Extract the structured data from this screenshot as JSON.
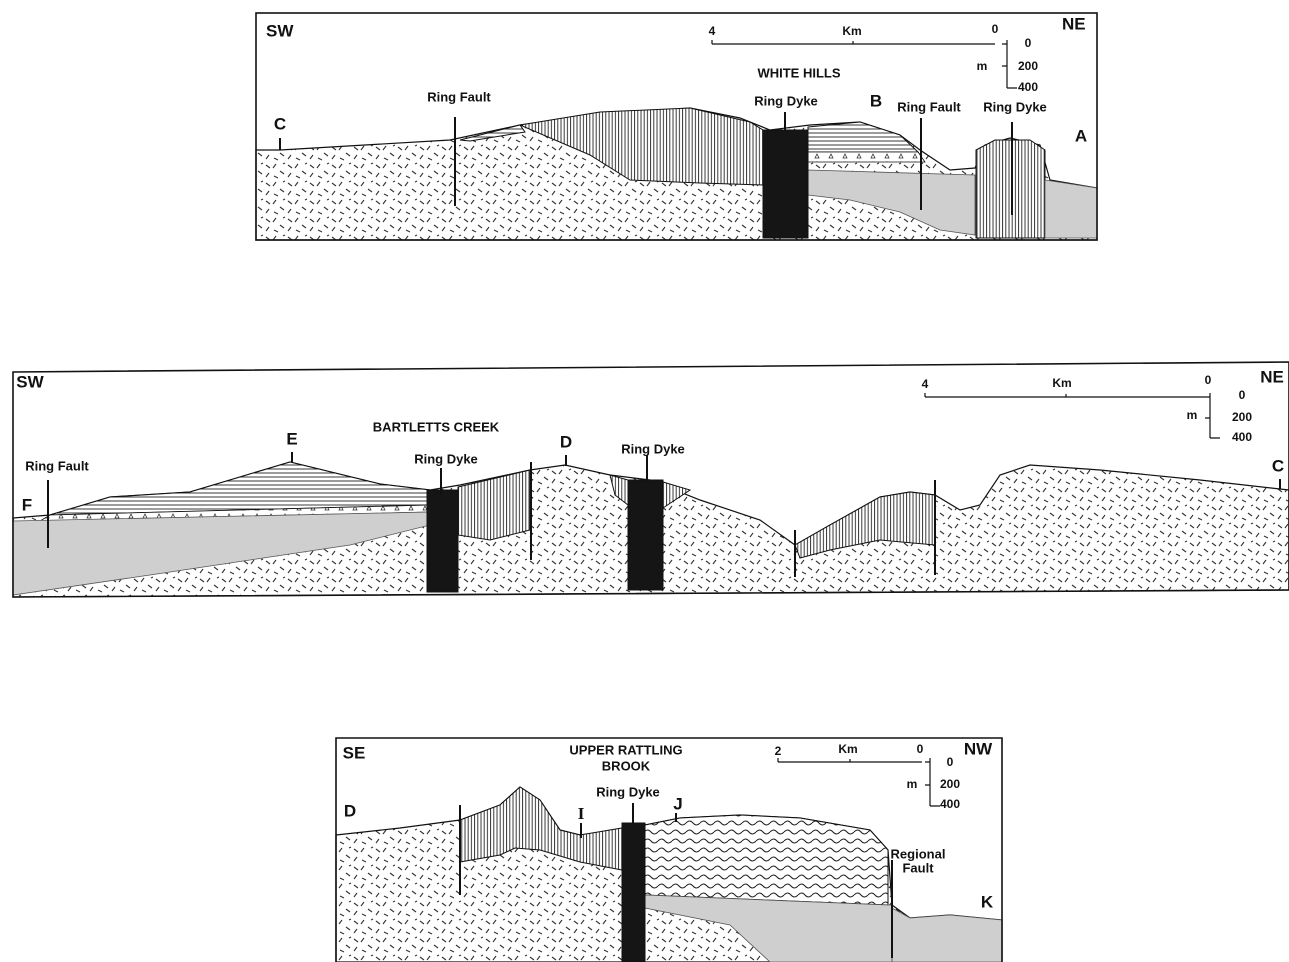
{
  "sections": [
    {
      "left": "SW",
      "right": "NE",
      "title": "WHITE HILLS",
      "points": [
        "C",
        "B",
        "A"
      ],
      "faults": [
        "Ring Fault",
        "Ring Fault"
      ],
      "dykes": [
        "Ring Dyke",
        "Ring Dyke"
      ],
      "scale": {
        "km_label": "Km",
        "km_left": "4",
        "km_right": "0",
        "m_label": "m",
        "m_ticks": [
          "0",
          "200",
          "400"
        ]
      }
    },
    {
      "left": "SW",
      "right": "NE",
      "title": "BARTLETTS CREEK",
      "points": [
        "F",
        "E",
        "D",
        "C"
      ],
      "faults": [
        "Ring Fault"
      ],
      "dykes": [
        "Ring Dyke",
        "Ring Dyke"
      ],
      "scale": {
        "km_label": "Km",
        "km_left": "4",
        "km_right": "0",
        "m_label": "m",
        "m_ticks": [
          "0",
          "200",
          "400"
        ]
      }
    },
    {
      "left": "SE",
      "right": "NW",
      "title_lines": [
        "UPPER RATTLING",
        "BROOK"
      ],
      "points": [
        "D",
        "I",
        "J",
        "K"
      ],
      "regional_fault": [
        "Regional",
        "Fault"
      ],
      "dykes": [
        "Ring Dyke"
      ],
      "scale": {
        "km_label": "Km",
        "km_left": "2",
        "km_right": "0",
        "m_label": "m",
        "m_ticks": [
          "0",
          "200",
          "400"
        ]
      }
    }
  ]
}
